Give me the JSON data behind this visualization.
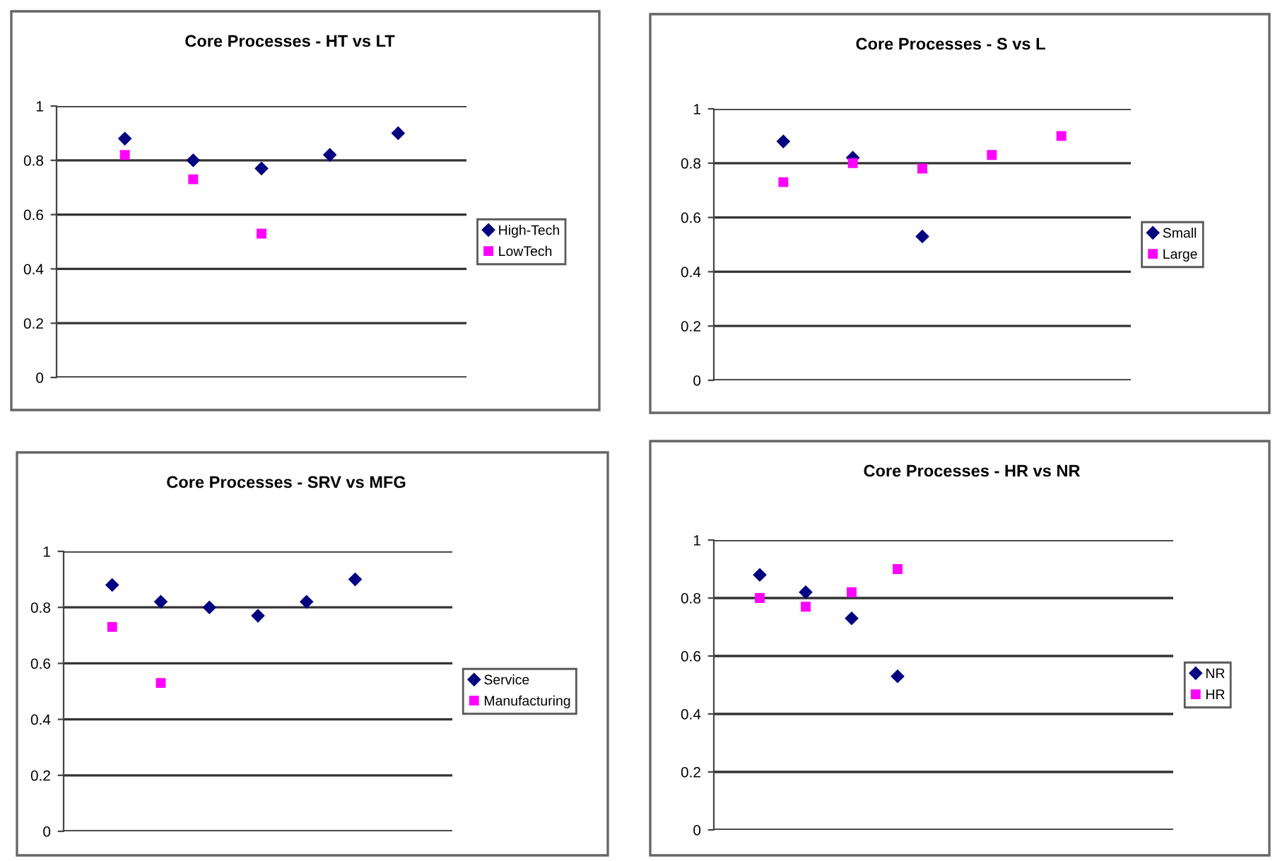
{
  "chart_data": [
    {
      "type": "scatter",
      "title": "Core Processes - HT vs LT",
      "categories": [
        null,
        null,
        null,
        null,
        null
      ],
      "ylim": [
        0,
        1
      ],
      "yticks": [
        0,
        0.2,
        0.4,
        0.6,
        0.8,
        1
      ],
      "grid": "y",
      "legend": "right",
      "tick_labels": "y",
      "series": [
        {
          "name": "High-Tech",
          "color": "#000080",
          "marker": "diamond",
          "values": [
            0.88,
            0.8,
            0.77,
            0.82,
            0.9
          ]
        },
        {
          "name": "LowTech",
          "color": "#ff00ff",
          "marker": "square",
          "values": [
            0.82,
            0.73,
            0.53,
            null,
            null
          ]
        }
      ]
    },
    {
      "type": "scatter",
      "title": "Core Processes - S vs L",
      "categories": [
        null,
        null,
        null,
        null,
        null
      ],
      "ylim": [
        0,
        1
      ],
      "yticks": [
        0,
        0.2,
        0.4,
        0.6,
        0.8,
        1
      ],
      "grid": "y",
      "legend": "right",
      "tick_labels": "y",
      "series": [
        {
          "name": "Small",
          "color": "#000080",
          "marker": "diamond",
          "values": [
            0.88,
            0.82,
            0.53,
            null,
            null
          ]
        },
        {
          "name": "Large",
          "color": "#ff00ff",
          "marker": "square",
          "values": [
            0.73,
            0.8,
            0.78,
            0.83,
            0.9
          ]
        }
      ]
    },
    {
      "type": "scatter",
      "title": "Core Processes - SRV vs MFG",
      "categories": [
        null,
        null,
        null,
        null,
        null,
        null,
        null
      ],
      "ylim": [
        0,
        1
      ],
      "yticks": [
        0,
        0.2,
        0.4,
        0.6,
        0.8,
        1
      ],
      "grid": "y",
      "legend": "right",
      "tick_labels": "y",
      "series": [
        {
          "name": "Service",
          "color": "#000080",
          "marker": "diamond",
          "values": [
            0.88,
            0.82,
            0.8,
            0.77,
            0.82,
            0.9,
            null
          ]
        },
        {
          "name": "Manufacturing",
          "color": "#ff00ff",
          "marker": "square",
          "values": [
            0.73,
            0.53,
            null,
            null,
            null,
            null,
            null
          ]
        }
      ]
    },
    {
      "type": "scatter",
      "title": "Core Processes - HR vs NR",
      "categories": [
        null,
        null,
        null,
        null,
        null,
        null,
        null,
        null,
        null
      ],
      "ylim": [
        0,
        1
      ],
      "yticks": [
        0,
        0.2,
        0.4,
        0.6,
        0.8,
        1
      ],
      "grid": "y",
      "legend": "right",
      "tick_labels": "y",
      "series": [
        {
          "name": "NR",
          "color": "#000080",
          "marker": "diamond",
          "values": [
            0.88,
            0.82,
            0.73,
            0.53,
            null,
            null,
            null,
            null,
            null
          ]
        },
        {
          "name": "HR",
          "color": "#ff00ff",
          "marker": "square",
          "values": [
            0.8,
            0.77,
            0.82,
            0.9,
            null,
            null,
            null,
            null,
            null
          ]
        }
      ]
    }
  ]
}
